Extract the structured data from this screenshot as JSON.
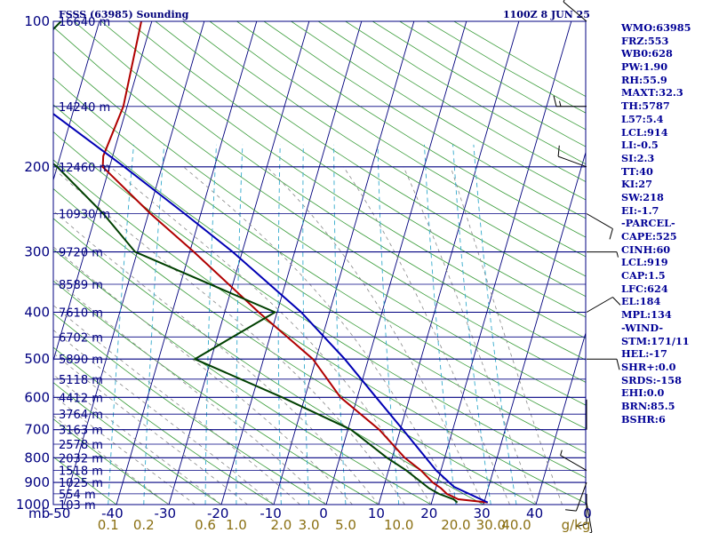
{
  "header": {
    "title": "FSSS (63985) Sounding",
    "time": "1100Z  8 JUN 25"
  },
  "indices": [
    "WMO:63985",
    "FRZ:553",
    "WB0:628",
    "PW:1.90",
    "RH:55.9",
    "MAXT:32.3",
    "TH:5787",
    "L57:5.4",
    "LCL:914",
    "LI:-0.5",
    "SI:2.3",
    "TT:40",
    "KI:27",
    "SW:218",
    "EI:-1.7",
    "-PARCEL-",
    "CAPE:525",
    "CINH:60",
    "LCL:919",
    "CAP:1.5",
    "LFC:624",
    "EL:184",
    "MPL:134",
    "-WIND-",
    "STM:171/11",
    "HEL:-17",
    "SHR+:0.0",
    "SRDS:-158",
    "EHI:0.0",
    "BRN:85.5",
    "BSHR:6"
  ],
  "chart_data": {
    "type": "skew-t",
    "units_label": "mb",
    "pressure_range": [
      1000,
      100
    ],
    "pressure_ticks": [
      {
        "p": 100,
        "label": "100"
      },
      {
        "p": 200,
        "label": "200"
      },
      {
        "p": 300,
        "label": "300"
      },
      {
        "p": 400,
        "label": "400"
      },
      {
        "p": 500,
        "label": "500"
      },
      {
        "p": 600,
        "label": "600"
      },
      {
        "p": 700,
        "label": "700"
      },
      {
        "p": 800,
        "label": "800"
      },
      {
        "p": 900,
        "label": "900"
      },
      {
        "p": 1000,
        "label": "1000"
      }
    ],
    "temperature_ticks": [
      "-50",
      "-40",
      "-30",
      "-20",
      "-10",
      "0",
      "10",
      "20",
      "30",
      "40",
      "0"
    ],
    "mixing_ratio_ticks": [
      "0.1",
      "0.2",
      "0.6",
      "1.0",
      "2.0",
      "3.0",
      "5.0",
      "10.0",
      "20.0",
      "30.0",
      "40.0"
    ],
    "mixing_ratio_unit": "g/kg",
    "height_levels": [
      {
        "p": 100,
        "label": "16640 m"
      },
      {
        "p": 150,
        "label": "14240 m"
      },
      {
        "p": 200,
        "label": "12460 m"
      },
      {
        "p": 250,
        "label": "10930 m"
      },
      {
        "p": 300,
        "label": "9720 m"
      },
      {
        "p": 350,
        "label": "8589 m"
      },
      {
        "p": 400,
        "label": "7610 m"
      },
      {
        "p": 450,
        "label": "6702 m"
      },
      {
        "p": 500,
        "label": "5890 m"
      },
      {
        "p": 550,
        "label": "5118 m"
      },
      {
        "p": 600,
        "label": "4412 m"
      },
      {
        "p": 650,
        "label": "3764 m"
      },
      {
        "p": 700,
        "label": "3163 m"
      },
      {
        "p": 750,
        "label": "2578 m"
      },
      {
        "p": 800,
        "label": "2032 m"
      },
      {
        "p": 850,
        "label": "1518 m"
      },
      {
        "p": 900,
        "label": "1025 m"
      },
      {
        "p": 950,
        "label": "554 m"
      },
      {
        "p": 1000,
        "label": "103 m"
      }
    ],
    "series": [
      {
        "key": "temperature",
        "color": "#b00000",
        "points": [
          [
            990,
            30.7
          ],
          [
            975,
            24.9
          ],
          [
            950,
            22.4
          ],
          [
            925,
            21.0
          ],
          [
            900,
            19.1
          ],
          [
            850,
            16.2
          ],
          [
            800,
            12.4
          ],
          [
            700,
            6.0
          ],
          [
            600,
            -3.2
          ],
          [
            500,
            -10.6
          ],
          [
            400,
            -23.5
          ],
          [
            300,
            -39.2
          ],
          [
            250,
            -49.6
          ],
          [
            200,
            -61.3
          ],
          [
            190,
            -61.8
          ],
          [
            150,
            -60.7
          ],
          [
            100,
            -62.0
          ]
        ]
      },
      {
        "key": "dewpoint",
        "color": "#004000",
        "points": [
          [
            990,
            24.9
          ],
          [
            975,
            24.0
          ],
          [
            950,
            20.9
          ],
          [
            925,
            18.7
          ],
          [
            900,
            17.0
          ],
          [
            850,
            13.4
          ],
          [
            800,
            9.0
          ],
          [
            700,
            0.6
          ],
          [
            600,
            -14.3
          ],
          [
            500,
            -33.1
          ],
          [
            400,
            -20.4
          ],
          [
            300,
            -50.4
          ],
          [
            250,
            -58.6
          ],
          [
            200,
            -70.0
          ],
          [
            150,
            -88.6
          ],
          [
            100,
            -77.3
          ]
        ]
      },
      {
        "key": "parcel",
        "color": "#0000b4",
        "points": [
          [
            990,
            30.7
          ],
          [
            919,
            23.4
          ],
          [
            850,
            19.1
          ],
          [
            700,
            10.5
          ],
          [
            600,
            3.6
          ],
          [
            500,
            -4.5
          ],
          [
            400,
            -15.4
          ],
          [
            300,
            -31.8
          ],
          [
            250,
            -43.1
          ],
          [
            200,
            -57.2
          ],
          [
            150,
            -76.0
          ],
          [
            130,
            -85.0
          ]
        ]
      }
    ],
    "winds": [
      {
        "p": 990,
        "dir": 170,
        "spd": 5
      },
      {
        "p": 950,
        "dir": 180,
        "spd": 10
      },
      {
        "p": 900,
        "dir": 200,
        "spd": 10
      },
      {
        "p": 850,
        "dir": 300,
        "spd": 5
      },
      {
        "p": 700,
        "dir": 0,
        "spd": 3
      },
      {
        "p": 500,
        "dir": 90,
        "spd": 10
      },
      {
        "p": 400,
        "dir": 60,
        "spd": 10
      },
      {
        "p": 300,
        "dir": 90,
        "spd": 5
      },
      {
        "p": 250,
        "dir": 120,
        "spd": 10
      },
      {
        "p": 200,
        "dir": 290,
        "spd": 10
      },
      {
        "p": 150,
        "dir": 270,
        "spd": 15
      },
      {
        "p": 100,
        "dir": 310,
        "spd": 10
      }
    ]
  }
}
